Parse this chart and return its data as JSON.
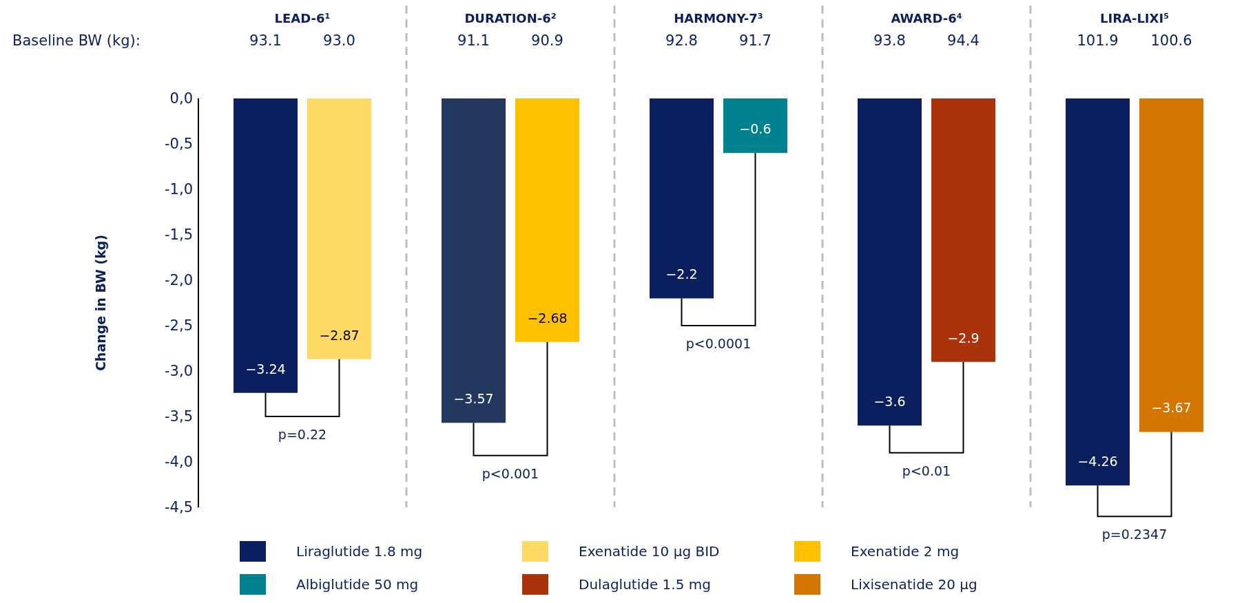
{
  "chart_data": {
    "type": "bar",
    "ylabel": "Change in BW (kg)",
    "categories": [
      "LEAD-6¹",
      "DURATION-6²",
      "HARMONY-7³",
      "AWARD-6⁴",
      "LIRA-LIXI⁵"
    ],
    "series": [
      {
        "name": "Liraglutide 1.8 mg",
        "color": "#0b1f5e",
        "colors": [
          "#0b1f5e",
          "#22385f",
          "#0b1f5e",
          "#0b1f5e",
          "#0b1f5e"
        ],
        "values": [
          -3.24,
          -3.57,
          -2.2,
          -3.6,
          -4.26
        ],
        "value_labels": [
          "−3.24",
          "−3.57",
          "−2.2",
          "−3.6",
          "−4.26"
        ]
      },
      {
        "name": "Exenatide 10 µg BID",
        "color": "#ffd966",
        "values": [
          -2.87,
          null,
          null,
          null,
          null
        ],
        "value_labels": [
          "−2.87",
          null,
          null,
          null,
          null
        ]
      },
      {
        "name": "Exenatide 2 mg",
        "color": "#ffc000",
        "values": [
          null,
          -2.68,
          null,
          null,
          null
        ],
        "value_labels": [
          null,
          "−2.68",
          null,
          null,
          null
        ]
      },
      {
        "name": "Albiglutide 50 mg",
        "color": "#00818f",
        "values": [
          null,
          null,
          -0.6,
          null,
          null
        ],
        "value_labels": [
          null,
          null,
          "−0.6",
          null,
          null
        ]
      },
      {
        "name": "Dulaglutide 1.5 mg",
        "color": "#a9340c",
        "values": [
          null,
          null,
          null,
          -2.9,
          null
        ],
        "value_labels": [
          null,
          null,
          null,
          "−2.9",
          null
        ]
      },
      {
        "name": "Lixisenatide 20 µg",
        "color": "#d47500",
        "values": [
          null,
          null,
          null,
          null,
          -3.67
        ],
        "value_labels": [
          null,
          null,
          null,
          null,
          "−3.67"
        ]
      }
    ],
    "ylim": [
      -4.5,
      0
    ],
    "yticks": [
      {
        "value": 0,
        "label": "0,0"
      },
      {
        "value": -0.5,
        "label": "-0,5"
      },
      {
        "value": -1,
        "label": "-1,0"
      },
      {
        "value": -1.5,
        "label": "-1,5"
      },
      {
        "value": -2,
        "label": "-2,0"
      },
      {
        "value": -2.5,
        "label": "-2,5"
      },
      {
        "value": -3,
        "label": "-3,0"
      },
      {
        "value": -3.5,
        "label": "-3,5"
      },
      {
        "value": -4,
        "label": "-4,0"
      },
      {
        "value": -4.5,
        "label": "-4,5"
      }
    ],
    "grid": false,
    "legend": "bottom",
    "annotations": [
      "Baseline BW (kg):",
      "93.1",
      "93.0",
      "91.1",
      "90.9",
      "92.8",
      "91.7",
      "93.8",
      "94.4",
      "101.9",
      "100.6",
      "p=0.22",
      "p<0.001",
      "p<0.0001",
      "p<0.01",
      "p=0.2347"
    ]
  }
}
